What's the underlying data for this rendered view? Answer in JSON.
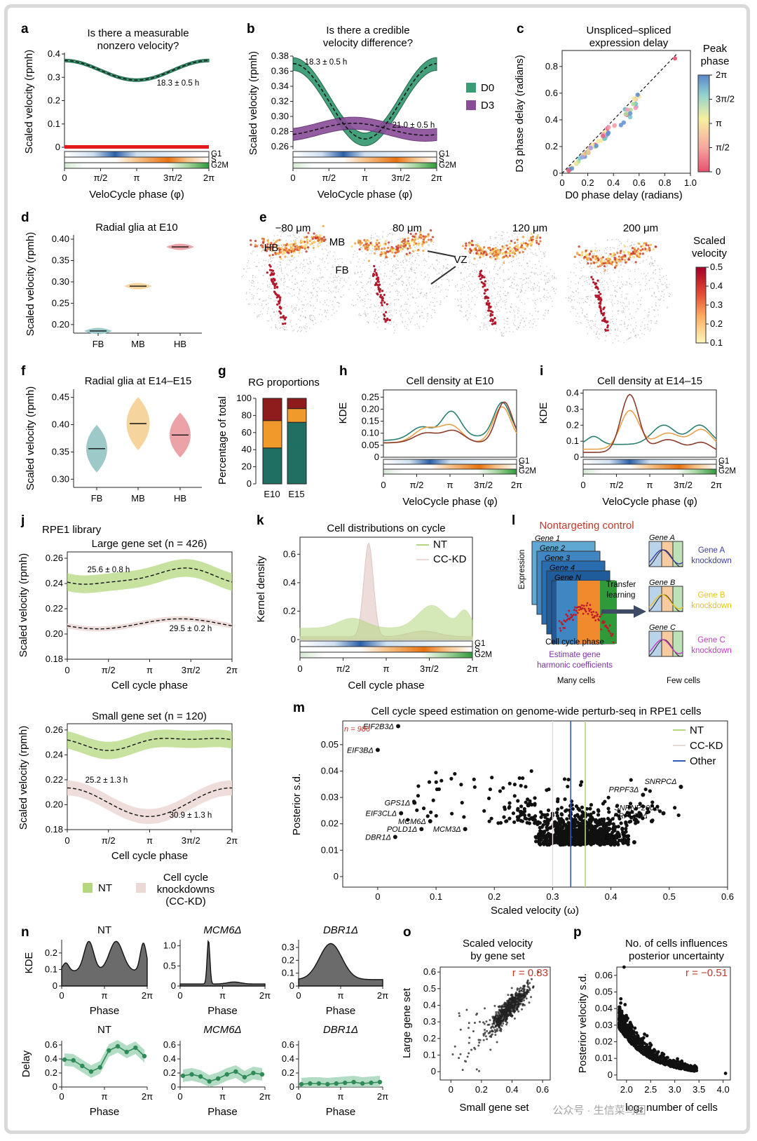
{
  "colors": {
    "d0": "#3a9c74",
    "d3": "#8a4c97",
    "nt": "#b4d77f",
    "cckd": "#ecd9d6",
    "other": "#2f5bb0",
    "red": "#c0392b",
    "teal": "#1f6f63",
    "orange": "#f09a2c",
    "darkred": "#8f1c1c"
  },
  "phase_ticks": [
    "0",
    "π/2",
    "π",
    "3π/2",
    "2π"
  ],
  "phase_strip_labels": [
    "G1",
    "S",
    "G2M"
  ],
  "a": {
    "label": "a",
    "title": [
      "Is there a measurable",
      "nonzero velocity?"
    ],
    "ylabel": "Scaled velocity (rpmh)",
    "xlabel": "VeloCycle phase (φ)",
    "yticks": [
      "0",
      "0.1",
      "0.2",
      "0.3",
      "0.4"
    ],
    "annotation": "18.3 ± 0.5 h"
  },
  "b": {
    "label": "b",
    "title": [
      "Is there a credible",
      "velocity difference?"
    ],
    "ylabel": "Scaled velocity (rpmh)",
    "xlabel": "VeloCycle phase (φ)",
    "yticks": [
      "0.26",
      "0.28",
      "0.30",
      "0.32",
      "0.34",
      "0.36",
      "0.38"
    ],
    "ann1": "18.3 ± 0.5 h",
    "ann2": "21.0 ± 0.5 h",
    "legend": [
      "D0",
      "D3"
    ]
  },
  "c": {
    "label": "c",
    "title": [
      "Unspliced–spliced",
      "expression delay"
    ],
    "ylabel": "D3 phase delay (radians)",
    "xlabel": "D0 phase delay (radians)",
    "ticks": [
      "0",
      "0.2",
      "0.4",
      "0.6",
      "0.8",
      "1.0"
    ],
    "yticks": [
      "0",
      "0.2",
      "0.4",
      "0.6",
      "0.8"
    ],
    "cbar_title": [
      "Peak",
      "phase"
    ],
    "cbar_ticks": [
      "2π",
      "3π/2",
      "π",
      "π/2",
      "0"
    ]
  },
  "d": {
    "label": "d",
    "title": "Radial glia at E10",
    "ylabel": "Scaled velocity (rpmh)",
    "yticks": [
      "0.20",
      "0.25",
      "0.30",
      "0.35",
      "0.40"
    ],
    "cats": [
      "FB",
      "MB",
      "HB"
    ]
  },
  "e": {
    "label": "e",
    "sections": [
      "−80 μm",
      "80 μm",
      "120 μm",
      "200 μm"
    ],
    "regions": [
      "HB",
      "MB",
      "FB"
    ],
    "vz": "VZ",
    "cbar_title": [
      "Scaled",
      "velocity"
    ],
    "cbar_ticks": [
      "0.5",
      "0.4",
      "0.3",
      "0.2",
      "0.1"
    ]
  },
  "f": {
    "label": "f",
    "title": "Radial glia at E14–E15",
    "ylabel": "Scaled velocity (rpmh)",
    "yticks": [
      "0.30",
      "0.35",
      "0.40",
      "0.45"
    ],
    "cats": [
      "FB",
      "MB",
      "HB"
    ]
  },
  "g": {
    "label": "g",
    "title": "RG proportions",
    "ylabel": "Percentage of total",
    "yticks": [
      "0",
      "20",
      "40",
      "60",
      "80",
      "100"
    ],
    "cats": [
      "E10",
      "E15"
    ]
  },
  "h": {
    "label": "h",
    "title": "Cell density at E10",
    "ylabel": "KDE",
    "xlabel": "VeloCycle phase (φ)",
    "yticks": [
      "0",
      "0.05",
      "0.10",
      "0.15",
      "0.20",
      "0.25"
    ]
  },
  "i": {
    "label": "i",
    "title": "Cell density at E14–15",
    "ylabel": "KDE",
    "xlabel": "VeloCycle phase (φ)",
    "yticks": [
      "0",
      "0.1",
      "0.2",
      "0.3",
      "0.4"
    ]
  },
  "j": {
    "label": "j",
    "lib": "RPE1 library",
    "title1": "Large gene set (n = 426)",
    "title2": "Small gene set (n = 120)",
    "ylabel": "Scaled velocity (rpmh)",
    "xlabel": "Cell cycle phase",
    "yticks1": [
      "0.18",
      "0.20",
      "0.22",
      "0.24",
      "0.26"
    ],
    "yticks2": [
      "0.18",
      "0.20",
      "0.22",
      "0.24",
      "0.26"
    ],
    "ann1a": "25.6 ± 0.8 h",
    "ann1b": "29.5 ± 0.2 h",
    "ann2a": "25.2 ± 1.3 h",
    "ann2b": "30.9 ± 1.3 h",
    "legend_nt": "NT",
    "legend_cc": [
      "Cell cycle",
      "knockdowns",
      "(CC-KD)"
    ]
  },
  "k": {
    "label": "k",
    "title": "Cell distributions on cycle",
    "ylabel": "Kernel density",
    "xlabel": "Cell cycle phase",
    "yticks": [
      "0",
      "0.2",
      "0.4",
      "0.6"
    ],
    "legend": [
      "NT",
      "CC-KD"
    ]
  },
  "l": {
    "label": "l",
    "title": "Nontargeting control",
    "genes": [
      "Gene 1",
      "Gene 2",
      "Gene 3",
      "Gene 4",
      "Gene N"
    ],
    "expr": "Expression",
    "ccp": "Cell cycle phase",
    "transfer": [
      "Transfer",
      "learning"
    ],
    "estimate": [
      "Estimate gene",
      "harmonic coefficients"
    ],
    "many": "Many cells",
    "few": "Few cells",
    "gA": "Gene A",
    "gB": "Gene B",
    "gC": "Gene C",
    "kA": [
      "Gene A",
      "knockdown"
    ],
    "kB": [
      "Gene B",
      "knockdown"
    ],
    "kC": [
      "Gene C",
      "knockdown"
    ]
  },
  "m": {
    "label": "m",
    "title": "Cell cycle speed estimation on genome-wide perturb-seq in RPE1 cells",
    "ylabel": "Posterior s.d.",
    "xlabel": "Scaled velocity (ω)",
    "n": "n = 986",
    "xticks": [
      "0",
      "0.1",
      "0.2",
      "0.3",
      "0.4",
      "0.5",
      "0.6"
    ],
    "yticks": [
      "0",
      "0.01",
      "0.02",
      "0.03",
      "0.04",
      "0.05"
    ],
    "legend": [
      "NT",
      "CC-KD",
      "Other"
    ],
    "genes": [
      {
        "n": "EIF2B3Δ",
        "x": 0.035,
        "y": 0.057
      },
      {
        "n": "EIF3BΔ",
        "x": 0.0,
        "y": 0.048
      },
      {
        "n": "GPS1Δ",
        "x": 0.063,
        "y": 0.028
      },
      {
        "n": "EIF3CLΔ",
        "x": 0.04,
        "y": 0.024
      },
      {
        "n": "MCM6Δ",
        "x": 0.09,
        "y": 0.021
      },
      {
        "n": "POLD1Δ",
        "x": 0.075,
        "y": 0.018
      },
      {
        "n": "MCM3Δ",
        "x": 0.15,
        "y": 0.018
      },
      {
        "n": "DBR1Δ",
        "x": 0.03,
        "y": 0.015
      },
      {
        "n": "PRPF3Δ",
        "x": 0.455,
        "y": 0.031
      },
      {
        "n": "SNRPCΔ",
        "x": 0.52,
        "y": 0.034
      },
      {
        "n": "SNRNP200Δ",
        "x": 0.49,
        "y": 0.024
      },
      {
        "n": "PRPF31Δ",
        "x": 0.47,
        "y": 0.021
      },
      {
        "n": "ENY2Δ",
        "x": 0.44,
        "y": 0.013
      }
    ]
  },
  "n": {
    "label": "n",
    "titles": [
      "NT",
      "MCM6Δ",
      "DBR1Δ"
    ],
    "ylabel_top": "KDE",
    "ylabel_bot": "Delay",
    "xlabel": "Phase",
    "xt": [
      "0",
      "π",
      "2π"
    ],
    "kde_yticks": [
      [
        "0",
        "0.1",
        "0.2"
      ],
      [
        "0",
        "0.5",
        "1.0"
      ],
      [
        "0",
        "0.1",
        "0.2",
        "0.3"
      ]
    ],
    "delay_yticks": [
      "0",
      "0.2",
      "0.4",
      "0.6"
    ],
    "delay": [
      [
        0.39,
        0.38,
        0.3,
        0.22,
        0.28,
        0.52,
        0.58,
        0.5,
        0.56,
        0.44
      ],
      [
        0.16,
        0.18,
        0.15,
        0.08,
        0.12,
        0.18,
        0.22,
        0.14,
        0.2,
        0.18
      ],
      [
        0.04,
        0.05,
        0.05,
        0.04,
        0.05,
        0.06,
        0.07,
        0.05,
        0.06,
        0.07
      ]
    ]
  },
  "o": {
    "label": "o",
    "title": [
      "Scaled velocity",
      "by gene set"
    ],
    "ylabel": "Large gene set",
    "xlabel": "Small gene set",
    "r": "r = 0.83",
    "xticks": [
      "0",
      "0.2",
      "0.4",
      "0.6"
    ],
    "yticks": [
      "0",
      "0.1",
      "0.2",
      "0.3",
      "0.4",
      "0.5",
      "0.6"
    ]
  },
  "p": {
    "label": "p",
    "title": [
      "No. of cells influences",
      "posterior uncertainty"
    ],
    "ylabel": "Posterior velocity s.d.",
    "xlabel": "log₂ number of cells",
    "r": "r = −0.51",
    "xticks": [
      "2.0",
      "2.5",
      "3.0",
      "3.5",
      "4.0"
    ],
    "yticks": [
      "0",
      "0.01",
      "0.02",
      "0.03",
      "0.04",
      "0.05",
      "0.06"
    ]
  },
  "watermark": "公众号 · 生信菜鸟团"
}
